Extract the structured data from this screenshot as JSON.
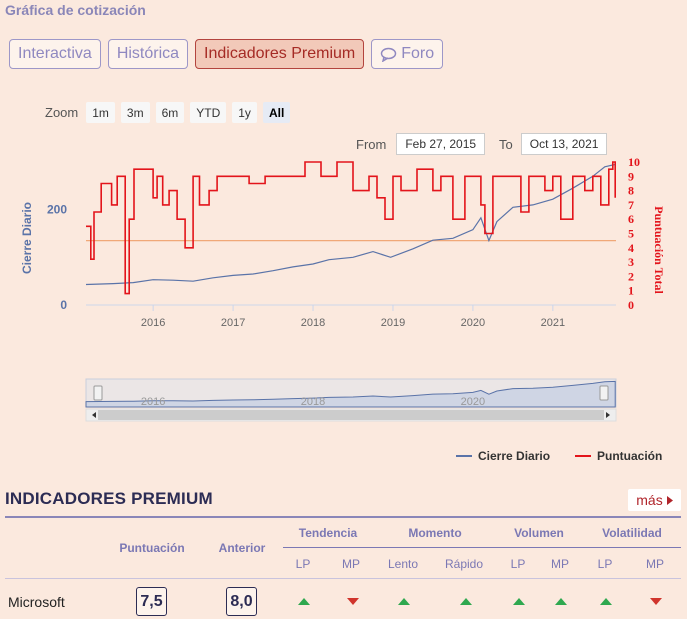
{
  "section_title": "Gráfica de cotización",
  "tabs": [
    {
      "label": "Interactiva",
      "active": false
    },
    {
      "label": "Histórica",
      "active": false
    },
    {
      "label": "Indicadores Premium",
      "active": true
    },
    {
      "label": "Foro",
      "active": false,
      "icon": "chat-bubble-icon"
    }
  ],
  "zoom": {
    "label": "Zoom",
    "buttons": [
      "1m",
      "3m",
      "6m",
      "YTD",
      "1y",
      "All"
    ],
    "active": "All"
  },
  "range": {
    "from_label": "From",
    "from_value": "Feb 27, 2015",
    "to_label": "To",
    "to_value": "Oct 13, 2021"
  },
  "chart_data": {
    "type": "line",
    "left_axis": {
      "label": "Cierre Diario",
      "ticks": [
        0,
        200
      ],
      "range": [
        0,
        300
      ]
    },
    "right_axis": {
      "label": "Puntuación Total",
      "ticks": [
        0,
        1,
        2,
        3,
        4,
        5,
        6,
        7,
        8,
        9,
        10
      ],
      "range": [
        0,
        10
      ]
    },
    "x_ticks": [
      "2016",
      "2017",
      "2018",
      "2019",
      "2020",
      "2021"
    ],
    "reference_line": {
      "axis": "right",
      "value": 4.5
    },
    "series": [
      {
        "name": "Cierre Diario",
        "color": "#5a73a8",
        "x": [
          2015.16,
          2015.5,
          2015.75,
          2016.0,
          2016.25,
          2016.5,
          2016.75,
          2017.0,
          2017.25,
          2017.5,
          2017.75,
          2018.0,
          2018.2,
          2018.5,
          2018.75,
          2018.97,
          2019.25,
          2019.5,
          2019.75,
          2020.0,
          2020.1,
          2020.2,
          2020.3,
          2020.5,
          2020.75,
          2021.0,
          2021.25,
          2021.5,
          2021.65,
          2021.78
        ],
        "y": [
          43,
          45,
          47,
          53,
          52,
          50,
          57,
          62,
          65,
          72,
          80,
          86,
          95,
          100,
          112,
          100,
          118,
          136,
          140,
          158,
          183,
          135,
          175,
          205,
          210,
          222,
          245,
          270,
          290,
          295
        ]
      },
      {
        "name": "Puntuación",
        "color": "#e3141b",
        "x": [
          2015.16,
          2015.22,
          2015.26,
          2015.3,
          2015.35,
          2015.4,
          2015.48,
          2015.55,
          2015.62,
          2015.65,
          2015.7,
          2015.76,
          2015.8,
          2016.0,
          2016.05,
          2016.12,
          2016.2,
          2016.3,
          2016.4,
          2016.45,
          2016.5,
          2016.58,
          2016.7,
          2016.8,
          2017.0,
          2017.2,
          2017.4,
          2017.6,
          2017.8,
          2017.9,
          2018.1,
          2018.3,
          2018.5,
          2018.7,
          2018.8,
          2018.9,
          2019.0,
          2019.1,
          2019.3,
          2019.5,
          2019.6,
          2019.75,
          2019.9,
          2020.0,
          2020.1,
          2020.15,
          2020.25,
          2020.4,
          2020.6,
          2020.7,
          2020.9,
          2021.0,
          2021.1,
          2021.25,
          2021.4,
          2021.5,
          2021.6,
          2021.7,
          2021.75,
          2021.78
        ],
        "y": [
          5.5,
          3.2,
          6.5,
          6.5,
          8.5,
          8.5,
          7.0,
          9.0,
          9.0,
          0.8,
          6.0,
          9.5,
          9.5,
          7.5,
          9.0,
          7.0,
          8.0,
          6.0,
          4.0,
          4.0,
          9.0,
          7.0,
          8.0,
          9.0,
          9.0,
          8.5,
          9.0,
          9.0,
          9.0,
          10.0,
          9.0,
          10.0,
          8.0,
          9.0,
          7.5,
          6.0,
          9.0,
          8.0,
          9.5,
          8.0,
          9.0,
          6.0,
          9.0,
          9.0,
          7.0,
          5.0,
          9.0,
          9.0,
          6.5,
          9.0,
          8.0,
          9.0,
          6.0,
          9.0,
          8.0,
          9.0,
          7.0,
          9.5,
          10.0,
          7.5
        ]
      }
    ]
  },
  "navigator": {
    "ticks": [
      "2016",
      "2018",
      "2020"
    ]
  },
  "legend": {
    "close_label": "Cierre Diario",
    "score_label": "Puntuación"
  },
  "premium": {
    "title": "INDICADORES PREMIUM",
    "more_label": "más",
    "headers": {
      "score": "Puntuación",
      "previous": "Anterior",
      "groups": [
        "Tendencia",
        "Momento",
        "Volumen",
        "Volatilidad"
      ],
      "subs": [
        "LP",
        "MP",
        "Lento",
        "Rápido",
        "LP",
        "MP",
        "LP",
        "MP"
      ]
    },
    "rows": [
      {
        "name": "Microsoft",
        "score": "7,5",
        "previous": "8,0",
        "signals": [
          "up",
          "down",
          "up",
          "up",
          "up",
          "up",
          "up",
          "down"
        ]
      }
    ]
  },
  "colors": {
    "accent": "#a52b25",
    "close_line": "#5a73a8",
    "score_line": "#e3141b",
    "reference": "#f0a878",
    "up": "#2fa84f",
    "down": "#d0342c"
  }
}
